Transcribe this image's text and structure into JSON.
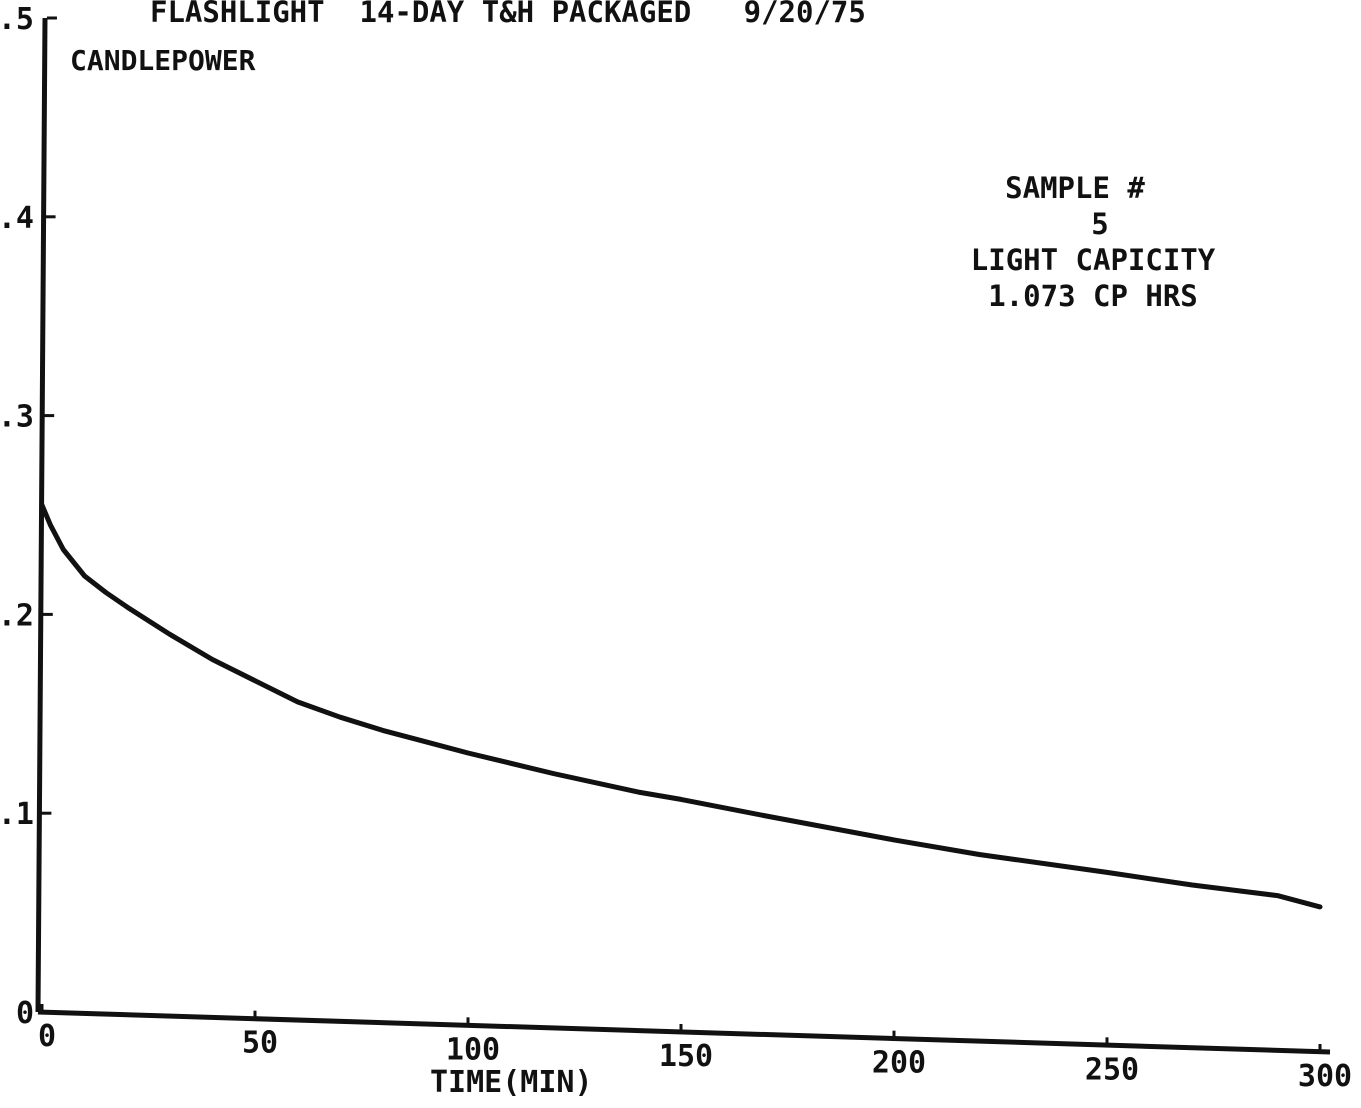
{
  "chart_data": {
    "type": "line",
    "title": "FLASHLIGHT  14-DAY T&H PACKAGED   9/20/75",
    "ylabel": "CANDLEPOWER",
    "xlabel": "TIME(MIN)",
    "xlim": [
      0,
      300
    ],
    "ylim": [
      0,
      5
    ],
    "x_ticks": [
      "0",
      "50",
      "100",
      "150",
      "200",
      "250",
      "300"
    ],
    "y_ticks": [
      "0",
      ".1",
      ".2",
      ".3",
      ".4",
      ".5"
    ],
    "y_tick_values": [
      0,
      1,
      2,
      3,
      4,
      5
    ],
    "grid": false,
    "annotation": {
      "line1": "SAMPLE #",
      "line2": "5",
      "line3": "LIGHT CAPICITY",
      "line4": "1.073 CP HRS"
    },
    "series": [
      {
        "values": [
          {
            "x": 0,
            "y": 2.55
          },
          {
            "x": 2,
            "y": 2.45
          },
          {
            "x": 5,
            "y": 2.33
          },
          {
            "x": 10,
            "y": 2.2
          },
          {
            "x": 15,
            "y": 2.12
          },
          {
            "x": 20,
            "y": 2.05
          },
          {
            "x": 30,
            "y": 1.92
          },
          {
            "x": 40,
            "y": 1.8
          },
          {
            "x": 50,
            "y": 1.7
          },
          {
            "x": 60,
            "y": 1.6
          },
          {
            "x": 70,
            "y": 1.53
          },
          {
            "x": 80,
            "y": 1.47
          },
          {
            "x": 90,
            "y": 1.42
          },
          {
            "x": 100,
            "y": 1.37
          },
          {
            "x": 120,
            "y": 1.28
          },
          {
            "x": 140,
            "y": 1.2
          },
          {
            "x": 150,
            "y": 1.17
          },
          {
            "x": 170,
            "y": 1.1
          },
          {
            "x": 200,
            "y": 1.0
          },
          {
            "x": 220,
            "y": 0.94
          },
          {
            "x": 250,
            "y": 0.87
          },
          {
            "x": 270,
            "y": 0.82
          },
          {
            "x": 290,
            "y": 0.78
          },
          {
            "x": 300,
            "y": 0.73
          }
        ]
      }
    ]
  }
}
